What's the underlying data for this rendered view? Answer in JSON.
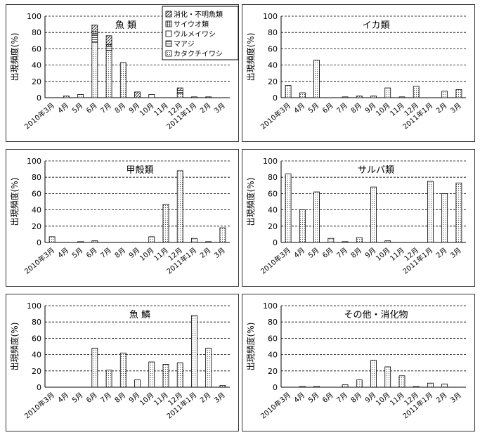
{
  "patterns": {
    "消化・不明魚類": "diag",
    "サイウオ類": "grid",
    "ウルメイワシ": "blank",
    "マアジ": "hlines",
    "カタクチイワシ": "dots"
  },
  "chart_data": [
    {
      "type": "bar",
      "stacked": true,
      "title": "魚 類",
      "ylabel": "出現頻度(%)",
      "ylim": [
        0,
        100
      ],
      "yticks": [
        0,
        20,
        40,
        60,
        80,
        100
      ],
      "grid": "dashed",
      "legend_position": "top-right",
      "categories": [
        "2010年3月",
        "4月",
        "5月",
        "6月",
        "7月",
        "8月",
        "9月",
        "10月",
        "11月",
        "12月",
        "2011年1月",
        "2月",
        "3月"
      ],
      "series": [
        {
          "name": "カタクチイワシ",
          "values": [
            0,
            2,
            4,
            68,
            58,
            43,
            0,
            0,
            0,
            5,
            0,
            0,
            0
          ]
        },
        {
          "name": "マアジ",
          "values": [
            0,
            0,
            0,
            10,
            5,
            0,
            0,
            0,
            0,
            4,
            0,
            0,
            0
          ]
        },
        {
          "name": "ウルメイワシ",
          "values": [
            0,
            0,
            0,
            0,
            0,
            0,
            0,
            4,
            0,
            0,
            1,
            0,
            0
          ]
        },
        {
          "name": "サイウオ類",
          "values": [
            0,
            0,
            0,
            3,
            2,
            0,
            0,
            0,
            0,
            0,
            0,
            0,
            0
          ]
        },
        {
          "name": "消化・不明魚類",
          "values": [
            0,
            0,
            0,
            8,
            11,
            0,
            7,
            0,
            0,
            3,
            0,
            1,
            0
          ]
        }
      ]
    },
    {
      "type": "bar",
      "title": "イカ類",
      "ylabel": "出現頻度(%)",
      "ylim": [
        0,
        100
      ],
      "yticks": [
        0,
        20,
        40,
        60,
        80,
        100
      ],
      "grid": "dashed",
      "categories": [
        "2010年3月",
        "4月",
        "5月",
        "6月",
        "7月",
        "8月",
        "9月",
        "10月",
        "11月",
        "12月",
        "2011年1月",
        "2月",
        "3月"
      ],
      "series": [
        {
          "values": [
            15,
            6,
            46,
            0,
            1,
            2,
            2,
            12,
            1,
            14,
            0,
            8,
            10
          ]
        }
      ]
    },
    {
      "type": "bar",
      "title": "甲殻類",
      "ylabel": "出現頻度(%)",
      "ylim": [
        0,
        100
      ],
      "yticks": [
        0,
        20,
        40,
        60,
        80,
        100
      ],
      "grid": "dashed",
      "categories": [
        "2010年3月",
        "4月",
        "5月",
        "6月",
        "7月",
        "8月",
        "9月",
        "10月",
        "11月",
        "12月",
        "2011年1月",
        "2月",
        "3月"
      ],
      "series": [
        {
          "values": [
            7,
            0,
            1,
            2,
            0,
            0,
            0,
            7,
            47,
            88,
            5,
            1,
            18
          ]
        }
      ]
    },
    {
      "type": "bar",
      "title": "サルパ類",
      "ylabel": "出現頻度(%)",
      "ylim": [
        0,
        100
      ],
      "yticks": [
        0,
        20,
        40,
        60,
        80,
        100
      ],
      "grid": "dashed",
      "categories": [
        "2010年3月",
        "4月",
        "5月",
        "6月",
        "7月",
        "8月",
        "9月",
        "10月",
        "11月",
        "12月",
        "2011年1月",
        "2月",
        "3月"
      ],
      "series": [
        {
          "values": [
            84,
            40,
            62,
            5,
            1,
            6,
            68,
            2,
            0,
            0,
            75,
            60,
            73
          ]
        }
      ]
    },
    {
      "type": "bar",
      "title": "魚 鱗",
      "ylabel": "出現頻度(%)",
      "ylim": [
        0,
        100
      ],
      "yticks": [
        0,
        20,
        40,
        60,
        80,
        100
      ],
      "grid": "dashed",
      "categories": [
        "2010年3月",
        "4月",
        "5月",
        "6月",
        "7月",
        "8月",
        "9月",
        "10月",
        "11月",
        "12月",
        "2011年1月",
        "2月",
        "3月"
      ],
      "series": [
        {
          "values": [
            0,
            0,
            0,
            48,
            21,
            42,
            9,
            31,
            28,
            30,
            88,
            48,
            2
          ]
        }
      ]
    },
    {
      "type": "bar",
      "title": "その他・消化物",
      "ylabel": "出現頻度(%)",
      "ylim": [
        0,
        100
      ],
      "yticks": [
        0,
        20,
        40,
        60,
        80,
        100
      ],
      "grid": "dashed",
      "categories": [
        "2010年3月",
        "4月",
        "5月",
        "6月",
        "7月",
        "8月",
        "9月",
        "10月",
        "11月",
        "12月",
        "2011年1月",
        "2月",
        "3月"
      ],
      "series": [
        {
          "values": [
            0,
            1,
            1,
            0,
            3,
            9,
            33,
            25,
            14,
            1,
            5,
            4,
            0
          ]
        }
      ]
    }
  ]
}
